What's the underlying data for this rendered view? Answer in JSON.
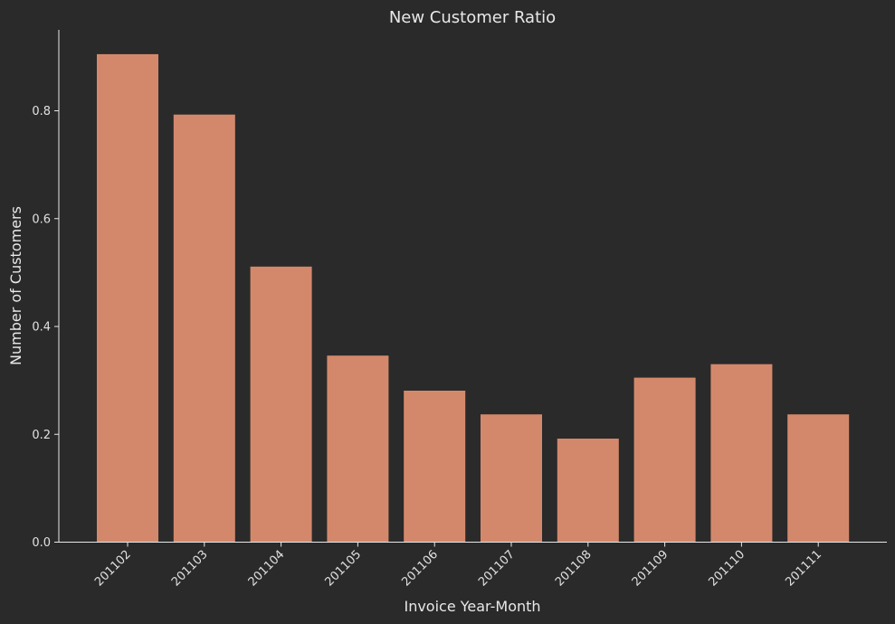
{
  "chart_data": {
    "type": "bar",
    "title": "New Customer Ratio",
    "xlabel": "Invoice Year-Month",
    "ylabel": "Number of Customers",
    "categories": [
      "201102",
      "201103",
      "201104",
      "201105",
      "201106",
      "201107",
      "201108",
      "201109",
      "201110",
      "201111"
    ],
    "values": [
      0.905,
      0.793,
      0.511,
      0.346,
      0.281,
      0.237,
      0.192,
      0.305,
      0.33,
      0.237
    ],
    "ylim": [
      0,
      0.95
    ],
    "yticks": [
      "0.0",
      "0.2",
      "0.4",
      "0.6",
      "0.8"
    ],
    "grid": false,
    "colors": {
      "background": "#2a2a2a",
      "bar": "#d4886b",
      "text": "#e8e8e8"
    }
  }
}
